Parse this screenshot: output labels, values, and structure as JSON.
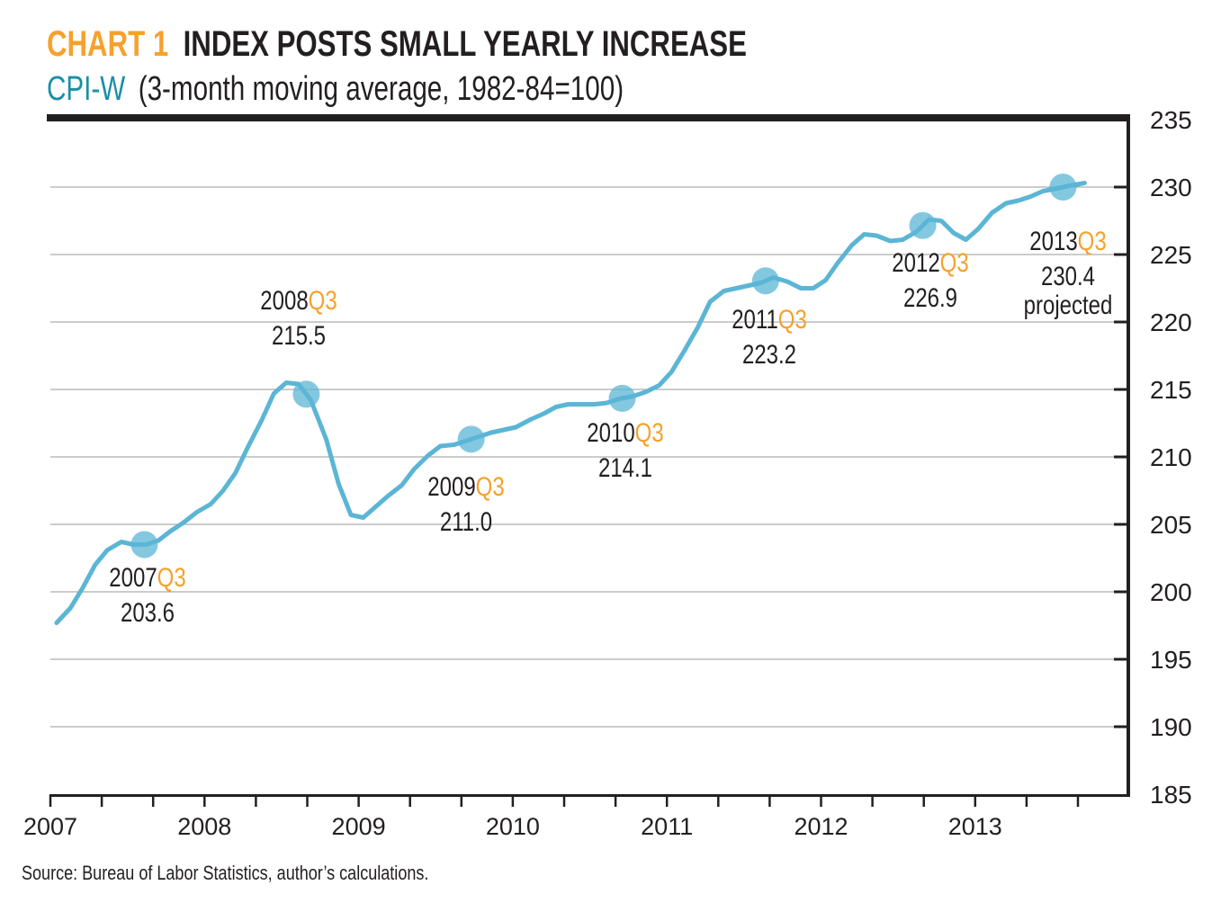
{
  "header": {
    "chart_number": "CHART 1",
    "title": "INDEX POSTS SMALL YEARLY INCREASE",
    "subtitle_series": "CPI-W",
    "subtitle_rest": "(3-month moving average, 1982-84=100)"
  },
  "source": "Source: Bureau of Labor Statistics, author’s calculations.",
  "colors": {
    "accent_orange": "#f7a12c",
    "teal": "#1a8fa6",
    "line": "#5bb5d5",
    "text": "#231f20"
  },
  "chart_data": {
    "type": "line",
    "title": "INDEX POSTS SMALL YEARLY INCREASE",
    "ylabel": "",
    "xlabel": "",
    "ylim": [
      185,
      235
    ],
    "xlim": [
      2007,
      2014
    ],
    "y_ticks": [
      "235",
      "230",
      "225",
      "220",
      "215",
      "210",
      "205",
      "200",
      "195",
      "190",
      "185"
    ],
    "x_ticks": [
      "2007",
      "2008",
      "2009",
      "2010",
      "2011",
      "2012",
      "2013"
    ],
    "y_axis_position": "right",
    "grid": true,
    "points": [
      [
        2007.04,
        197.7
      ],
      [
        2007.13,
        198.8
      ],
      [
        2007.21,
        200.3
      ],
      [
        2007.29,
        202.0
      ],
      [
        2007.37,
        203.1
      ],
      [
        2007.46,
        203.7
      ],
      [
        2007.54,
        203.5
      ],
      [
        2007.62,
        203.5
      ],
      [
        2007.7,
        203.8
      ],
      [
        2007.78,
        204.5
      ],
      [
        2007.86,
        205.1
      ],
      [
        2007.95,
        205.9
      ],
      [
        2008.04,
        206.5
      ],
      [
        2008.12,
        207.5
      ],
      [
        2008.2,
        208.8
      ],
      [
        2008.28,
        210.7
      ],
      [
        2008.37,
        212.7
      ],
      [
        2008.45,
        214.7
      ],
      [
        2008.53,
        215.5
      ],
      [
        2008.61,
        215.4
      ],
      [
        2008.69,
        214.2
      ],
      [
        2008.79,
        211.3
      ],
      [
        2008.87,
        208.0
      ],
      [
        2008.95,
        205.7
      ],
      [
        2009.03,
        205.5
      ],
      [
        2009.11,
        206.3
      ],
      [
        2009.19,
        207.1
      ],
      [
        2009.28,
        207.9
      ],
      [
        2009.36,
        209.1
      ],
      [
        2009.45,
        210.1
      ],
      [
        2009.53,
        210.8
      ],
      [
        2009.62,
        210.9
      ],
      [
        2009.7,
        211.2
      ],
      [
        2009.78,
        211.5
      ],
      [
        2009.86,
        211.8
      ],
      [
        2009.94,
        212.0
      ],
      [
        2010.02,
        212.2
      ],
      [
        2010.12,
        212.8
      ],
      [
        2010.2,
        213.2
      ],
      [
        2010.28,
        213.7
      ],
      [
        2010.36,
        213.9
      ],
      [
        2010.44,
        213.9
      ],
      [
        2010.53,
        213.9
      ],
      [
        2010.61,
        214.0
      ],
      [
        2010.69,
        214.3
      ],
      [
        2010.78,
        214.5
      ],
      [
        2010.86,
        214.8
      ],
      [
        2010.95,
        215.3
      ],
      [
        2011.03,
        216.3
      ],
      [
        2011.11,
        217.8
      ],
      [
        2011.2,
        219.6
      ],
      [
        2011.28,
        221.5
      ],
      [
        2011.37,
        222.3
      ],
      [
        2011.45,
        222.5
      ],
      [
        2011.53,
        222.7
      ],
      [
        2011.61,
        222.9
      ],
      [
        2011.69,
        223.3
      ],
      [
        2011.78,
        223.0
      ],
      [
        2011.87,
        222.5
      ],
      [
        2011.95,
        222.5
      ],
      [
        2012.03,
        223.1
      ],
      [
        2012.11,
        224.4
      ],
      [
        2012.2,
        225.7
      ],
      [
        2012.28,
        226.5
      ],
      [
        2012.36,
        226.4
      ],
      [
        2012.45,
        226.0
      ],
      [
        2012.53,
        226.1
      ],
      [
        2012.62,
        226.7
      ],
      [
        2012.7,
        227.6
      ],
      [
        2012.78,
        227.5
      ],
      [
        2012.86,
        226.6
      ],
      [
        2012.94,
        226.1
      ],
      [
        2013.02,
        226.9
      ],
      [
        2013.11,
        228.1
      ],
      [
        2013.2,
        228.8
      ],
      [
        2013.28,
        229.0
      ],
      [
        2013.36,
        229.3
      ],
      [
        2013.44,
        229.7
      ],
      [
        2013.53,
        229.9
      ],
      [
        2013.61,
        230.1
      ],
      [
        2013.71,
        230.3
      ]
    ],
    "annotations": [
      {
        "year": "2007",
        "quarter": "Q3",
        "x": 2007.61,
        "value": "203.6",
        "note": ""
      },
      {
        "year": "2008",
        "quarter": "Q3",
        "x": 2008.66,
        "value": "215.5",
        "note": ""
      },
      {
        "year": "2009",
        "quarter": "Q3",
        "x": 2009.73,
        "value": "211.0",
        "note": ""
      },
      {
        "year": "2010",
        "quarter": "Q3",
        "x": 2010.71,
        "value": "214.1",
        "note": ""
      },
      {
        "year": "2011",
        "quarter": "Q3",
        "x": 2011.64,
        "value": "223.2",
        "note": ""
      },
      {
        "year": "2012",
        "quarter": "Q3",
        "x": 2012.66,
        "value": "226.9",
        "note": ""
      },
      {
        "year": "2013",
        "quarter": "Q3",
        "x": 2013.57,
        "value": "230.4",
        "note": "projected"
      }
    ]
  }
}
